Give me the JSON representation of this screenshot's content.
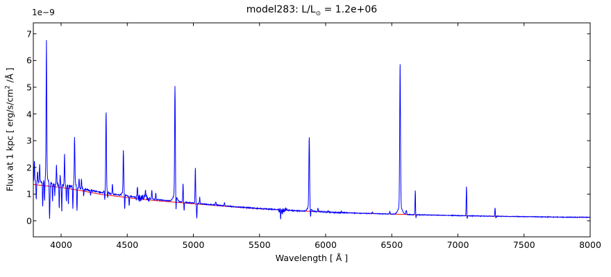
{
  "chart_data": {
    "type": "line",
    "title": "model283: L/L⊙ = 1.2e+06",
    "title_parts": {
      "prefix": "model283: L/L",
      "sun": "⊙",
      "suffix": " = 1.2e+06"
    },
    "xlabel": "Wavelength [ Å ]",
    "ylabel": "Flux at 1 kpc [ erg/s/cm² /Å ]",
    "ylabel_parts": {
      "prefix": "Flux at 1 kpc [ erg/s/cm",
      "sup": "2",
      "suffix": " /Å ]"
    },
    "y_offset_text": "1e−9",
    "xlim": [
      3790,
      8000
    ],
    "ylim": [
      -0.6,
      7.41
    ],
    "x_ticks": [
      4000,
      4500,
      5000,
      5500,
      6000,
      6500,
      7000,
      7500,
      8000
    ],
    "y_ticks": [
      0,
      1,
      2,
      3,
      4,
      5,
      6,
      7
    ],
    "grid": false,
    "legend": null,
    "frame_color": "#000000",
    "series": [
      {
        "name": "model spectrum with lines",
        "color": "#0000ff"
      },
      {
        "name": "smooth continuum model",
        "color": "#ff0000"
      }
    ],
    "continuum_points": [
      [
        3790,
        1.36
      ],
      [
        3900,
        1.3
      ],
      [
        4000,
        1.25
      ],
      [
        4150,
        1.13
      ],
      [
        4300,
        0.99
      ],
      [
        4450,
        0.9
      ],
      [
        4600,
        0.81
      ],
      [
        4750,
        0.74
      ],
      [
        4900,
        0.68
      ],
      [
        5050,
        0.62
      ],
      [
        5200,
        0.56
      ],
      [
        5350,
        0.5
      ],
      [
        5500,
        0.45
      ],
      [
        5650,
        0.41
      ],
      [
        5800,
        0.37
      ],
      [
        5950,
        0.34
      ],
      [
        6100,
        0.31
      ],
      [
        6250,
        0.285
      ],
      [
        6400,
        0.265
      ],
      [
        6550,
        0.245
      ],
      [
        6700,
        0.225
      ],
      [
        6850,
        0.21
      ],
      [
        7000,
        0.195
      ],
      [
        7150,
        0.18
      ],
      [
        7300,
        0.17
      ],
      [
        7450,
        0.16
      ],
      [
        7600,
        0.15
      ],
      [
        7750,
        0.14
      ],
      [
        8000,
        0.13
      ]
    ],
    "blue_excess_points": [
      [
        3790,
        0.12
      ],
      [
        4000,
        0.1
      ],
      [
        4300,
        0.07
      ],
      [
        4600,
        0.05
      ],
      [
        4900,
        0.03
      ],
      [
        5200,
        0.015
      ],
      [
        5500,
        0.01
      ],
      [
        5800,
        0.0
      ],
      [
        8000,
        0.0
      ]
    ],
    "emission_lines": [
      {
        "wl": 3798,
        "apex": 2.26,
        "sigma": 2.2,
        "wing": null
      },
      {
        "wl": 3822,
        "apex": 1.85,
        "sigma": 2.0,
        "wing": null
      },
      {
        "wl": 3838,
        "apex": 2.15,
        "sigma": 2.2,
        "wing": null
      },
      {
        "wl": 3889,
        "apex": 6.76,
        "sigma": 2.5,
        "wing": [
          0.25,
          12
        ]
      },
      {
        "wl": 3965,
        "apex": 2.08,
        "sigma": 2.2,
        "wing": null
      },
      {
        "wl": 3993,
        "apex": 1.7,
        "sigma": 2.0,
        "wing": null
      },
      {
        "wl": 4026,
        "apex": 2.51,
        "sigma": 2.2,
        "wing": null
      },
      {
        "wl": 4102,
        "apex": 3.12,
        "sigma": 2.5,
        "wing": [
          0.15,
          10
        ]
      },
      {
        "wl": 4136,
        "apex": 1.57,
        "sigma": 2.0,
        "wing": null
      },
      {
        "wl": 4154,
        "apex": 1.62,
        "sigma": 2.0,
        "wing": null
      },
      {
        "wl": 4340,
        "apex": 4.13,
        "sigma": 2.5,
        "wing": [
          0.18,
          11
        ]
      },
      {
        "wl": 4388,
        "apex": 1.38,
        "sigma": 2.0,
        "wing": null
      },
      {
        "wl": 4471,
        "apex": 2.63,
        "sigma": 2.5,
        "wing": [
          0.15,
          10
        ]
      },
      {
        "wl": 4577,
        "apex": 1.27,
        "sigma": 2.2,
        "wing": null
      },
      {
        "wl": 4640,
        "apex": 1.05,
        "sigma": 5.0,
        "wing": null
      },
      {
        "wl": 4686,
        "apex": 1.15,
        "sigma": 2.2,
        "wing": null
      },
      {
        "wl": 4716,
        "apex": 1.05,
        "sigma": 2.0,
        "wing": null
      },
      {
        "wl": 4861,
        "apex": 5.06,
        "sigma": 2.8,
        "wing": [
          0.28,
          13
        ]
      },
      {
        "wl": 4922,
        "apex": 1.42,
        "sigma": 2.2,
        "wing": null
      },
      {
        "wl": 5015,
        "apex": 2.0,
        "sigma": 2.3,
        "wing": null
      },
      {
        "wl": 5048,
        "apex": 0.9,
        "sigma": 2.0,
        "wing": null
      },
      {
        "wl": 5169,
        "apex": 0.7,
        "sigma": 2.5,
        "wing": null
      },
      {
        "wl": 5235,
        "apex": 0.68,
        "sigma": 2.5,
        "wing": null
      },
      {
        "wl": 5876,
        "apex": 3.15,
        "sigma": 2.8,
        "wing": [
          0.18,
          13
        ]
      },
      {
        "wl": 5942,
        "apex": 0.47,
        "sigma": 2.5,
        "wing": null
      },
      {
        "wl": 6019,
        "apex": 0.38,
        "sigma": 2.0,
        "wing": null
      },
      {
        "wl": 6119,
        "apex": 0.36,
        "sigma": 2.0,
        "wing": null
      },
      {
        "wl": 6354,
        "apex": 0.33,
        "sigma": 2.0,
        "wing": null
      },
      {
        "wl": 6485,
        "apex": 0.35,
        "sigma": 2.5,
        "wing": null
      },
      {
        "wl": 6563,
        "apex": 5.94,
        "sigma": 3.0,
        "wing": [
          0.3,
          15
        ]
      },
      {
        "wl": 6610,
        "apex": 0.38,
        "sigma": 3.0,
        "wing": null
      },
      {
        "wl": 6678,
        "apex": 1.17,
        "sigma": 2.3,
        "wing": null
      },
      {
        "wl": 7065,
        "apex": 1.32,
        "sigma": 2.3,
        "wing": null
      },
      {
        "wl": 7281,
        "apex": 0.5,
        "sigma": 2.2,
        "wing": null
      }
    ],
    "absorption_lines": [
      {
        "wl": 3812,
        "to": 0.78,
        "sigma": 2.0
      },
      {
        "wl": 3861,
        "to": 0.53,
        "sigma": 2.0
      },
      {
        "wl": 3875,
        "to": 0.76,
        "sigma": 1.8
      },
      {
        "wl": 3913,
        "to": 0.1,
        "sigma": 2.5
      },
      {
        "wl": 3935,
        "to": 0.72,
        "sigma": 2.0
      },
      {
        "wl": 3952,
        "to": 0.93,
        "sigma": 1.8
      },
      {
        "wl": 3986,
        "to": 0.45,
        "sigma": 2.0
      },
      {
        "wl": 4005,
        "to": 0.3,
        "sigma": 2.0
      },
      {
        "wl": 4040,
        "to": 0.68,
        "sigma": 1.8
      },
      {
        "wl": 4055,
        "to": 0.62,
        "sigma": 1.8
      },
      {
        "wl": 4089,
        "to": 0.42,
        "sigma": 2.0
      },
      {
        "wl": 4120,
        "to": 0.35,
        "sigma": 2.0
      },
      {
        "wl": 4171,
        "to": 0.9,
        "sigma": 1.8
      },
      {
        "wl": 4223,
        "to": 0.95,
        "sigma": 1.8
      },
      {
        "wl": 4330,
        "to": 0.8,
        "sigma": 2.0
      },
      {
        "wl": 4352,
        "to": 0.85,
        "sigma": 2.0
      },
      {
        "wl": 4481,
        "to": 0.41,
        "sigma": 2.0
      },
      {
        "wl": 4515,
        "to": 0.55,
        "sigma": 2.0
      },
      {
        "wl": 4869,
        "to": 0.4,
        "sigma": 2.0
      },
      {
        "wl": 4930,
        "to": 0.39,
        "sigma": 2.0
      },
      {
        "wl": 5026,
        "to": 0.085,
        "sigma": 2.2
      },
      {
        "wl": 5660,
        "to": 0.13,
        "sigma": 2.0
      },
      {
        "wl": 5672,
        "to": 0.25,
        "sigma": 1.8
      },
      {
        "wl": 5886,
        "to": 0.15,
        "sigma": 2.0
      },
      {
        "wl": 6683,
        "to": 0.11,
        "sigma": 1.8
      },
      {
        "wl": 7070,
        "to": 0.07,
        "sigma": 1.8
      },
      {
        "wl": 7287,
        "to": 0.1,
        "sigma": 1.8
      }
    ],
    "noise": {
      "base": 0.012,
      "regions": [
        {
          "from": 3790,
          "to": 4240,
          "amp": 0.045
        },
        {
          "from": 4240,
          "to": 4560,
          "amp": 0.022
        },
        {
          "from": 4560,
          "to": 4670,
          "amp": 0.12
        },
        {
          "from": 4670,
          "to": 5600,
          "amp": 0.018
        },
        {
          "from": 5640,
          "to": 5710,
          "amp": 0.09
        },
        {
          "from": 5710,
          "to": 5960,
          "amp": 0.02
        },
        {
          "from": 5960,
          "to": 6170,
          "amp": 0.022
        },
        {
          "from": 6170,
          "to": 7290,
          "amp": 0.012
        },
        {
          "from": 7290,
          "to": 8000,
          "amp": 0.012
        }
      ]
    }
  }
}
